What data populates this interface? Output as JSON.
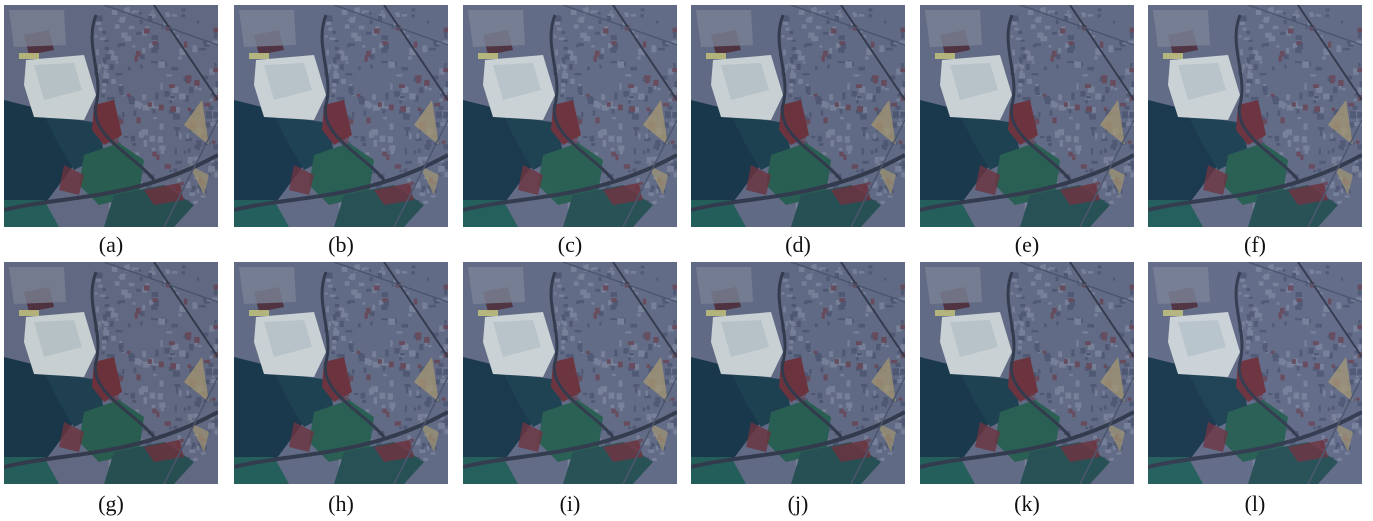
{
  "figure": {
    "rows": [
      {
        "panels": [
          {
            "label": "(a)"
          },
          {
            "label": "(b)"
          },
          {
            "label": "(c)"
          },
          {
            "label": "(d)"
          },
          {
            "label": "(e)"
          },
          {
            "label": "(f)"
          }
        ]
      },
      {
        "panels": [
          {
            "label": "(g)"
          },
          {
            "label": "(h)"
          },
          {
            "label": "(i)"
          },
          {
            "label": "(j)"
          },
          {
            "label": "(k)"
          },
          {
            "label": "(l)"
          }
        ]
      }
    ],
    "palette": {
      "urban": "#6f7894",
      "urban_dark": "#4a5472",
      "field_green": "#2f6a5c",
      "field_dark": "#1e3f55",
      "vegetation_red": "#7a3a45",
      "bright_area": "#e4ecee",
      "road": "#3a4256",
      "sand": "#b8a880"
    }
  }
}
